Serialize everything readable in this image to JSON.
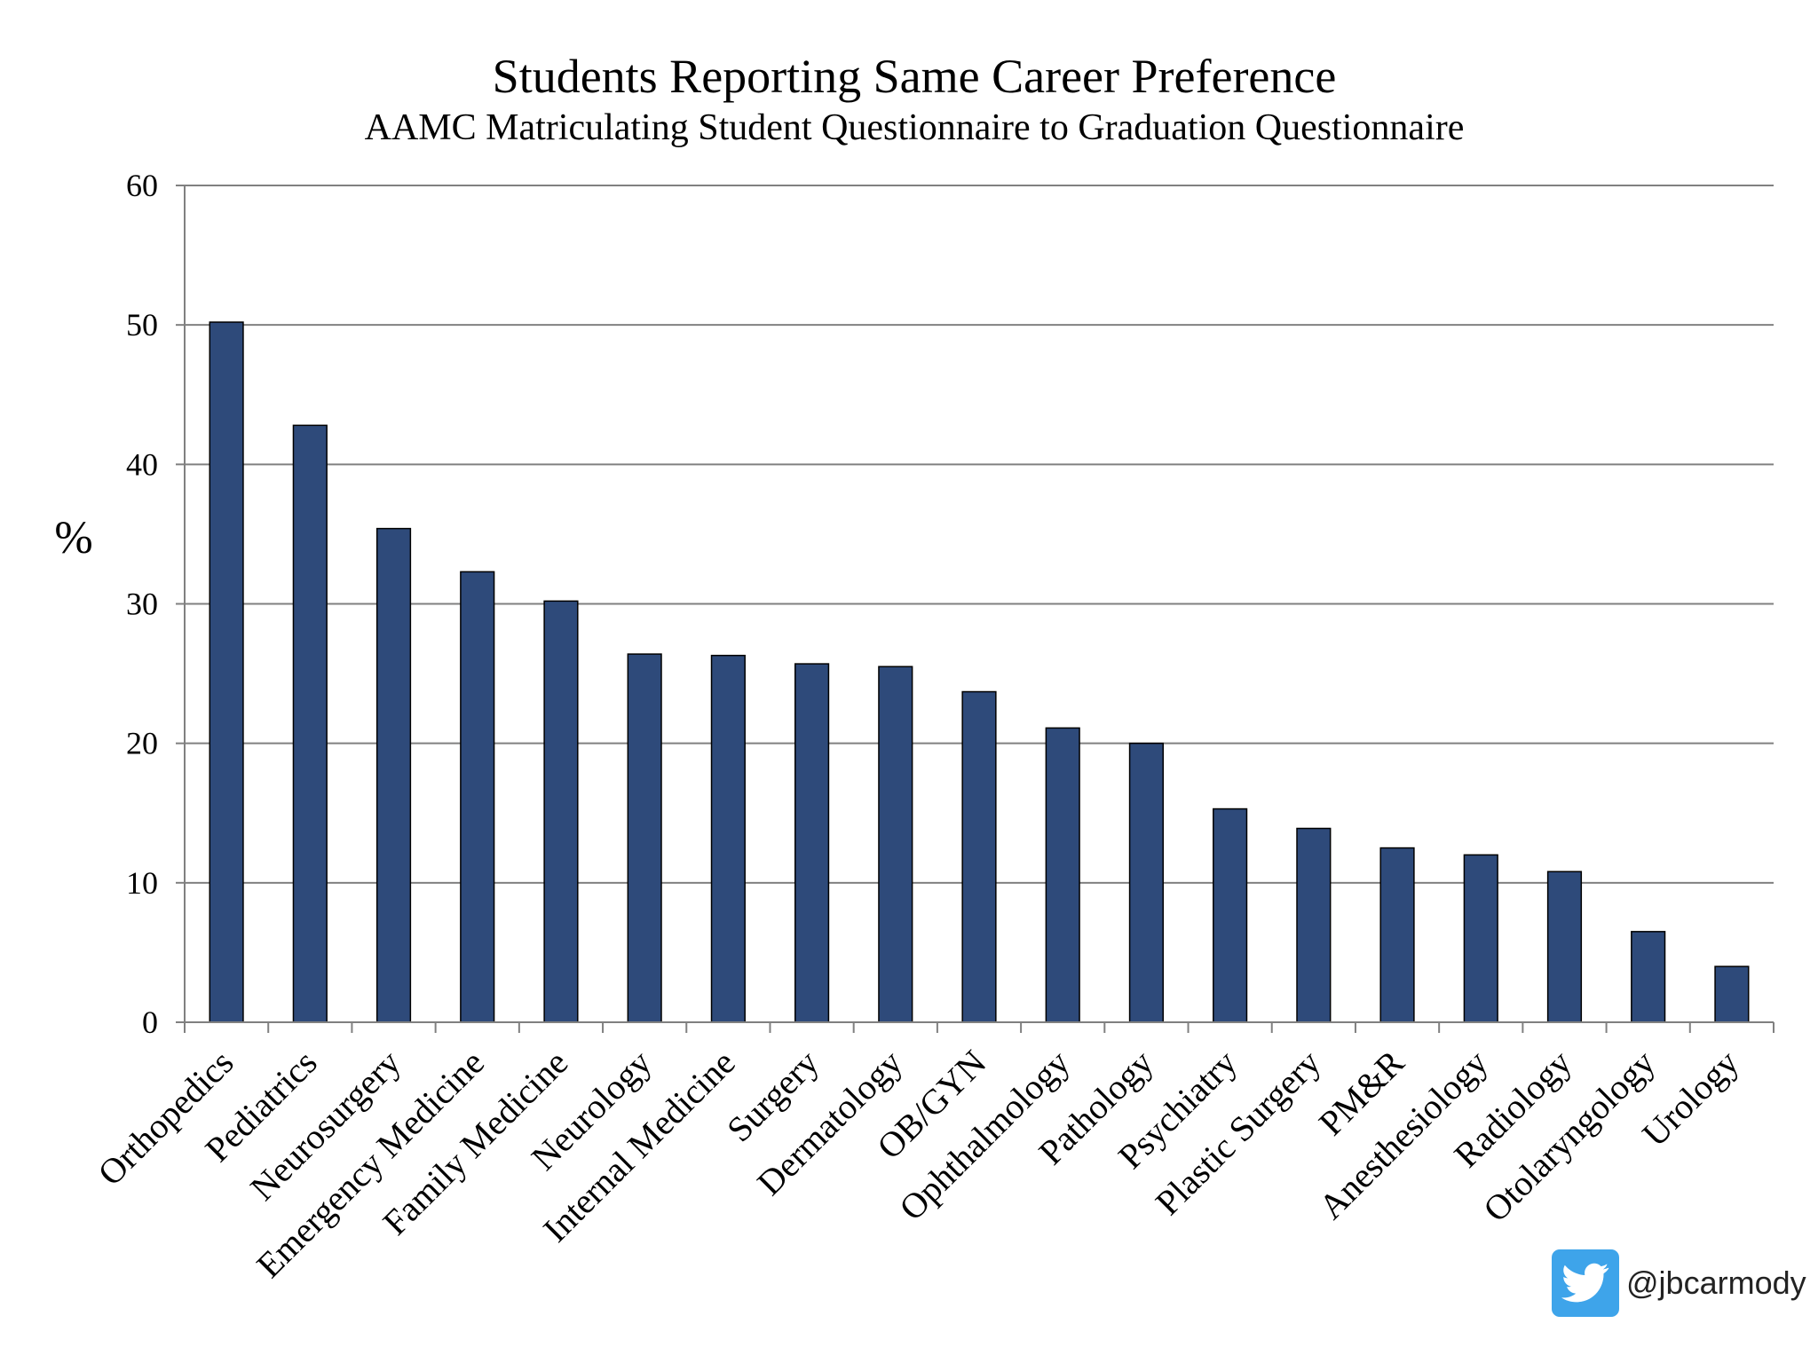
{
  "chart_data": {
    "type": "bar",
    "title": "Students Reporting Same Career Preference",
    "subtitle": "AAMC Matriculating Student Questionnaire to Graduation Questionnaire",
    "xlabel": "",
    "ylabel": "%",
    "ylim": [
      0,
      60
    ],
    "yticks": [
      "0",
      "10",
      "20",
      "30",
      "40",
      "50",
      "60"
    ],
    "grid": true,
    "legend": "none",
    "categories": [
      "Orthopedics",
      "Pediatrics",
      "Neurosurgery",
      "Emergency Medicine",
      "Family Medicine",
      "Neurology",
      "Internal Medicine",
      "Surgery",
      "Dermatology",
      "OB/GYN",
      "Ophthalmology",
      "Pathology",
      "Psychiatry",
      "Plastic Surgery",
      "PM&R",
      "Anesthesiology",
      "Radiology",
      "Otolaryngology",
      "Urology"
    ],
    "values": [
      50.2,
      42.8,
      35.4,
      32.3,
      30.2,
      26.4,
      26.3,
      25.7,
      25.5,
      23.7,
      21.1,
      20.0,
      15.3,
      13.9,
      12.5,
      12.0,
      10.8,
      6.5,
      4.0
    ],
    "colors": {
      "bar": "#2e4a7a",
      "bar_edge": "#000000",
      "grid": "#808080",
      "axis": "#808080"
    }
  },
  "watermark": {
    "icon": "twitter-bird-icon",
    "handle": "@jbcarmody",
    "icon_bg": "#3ea4ea"
  }
}
